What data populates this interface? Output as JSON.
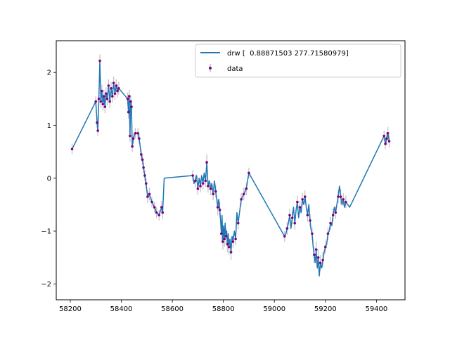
{
  "chart_data": {
    "type": "line",
    "title": "",
    "xlabel": "",
    "ylabel": "",
    "xlim": [
      58145,
      59512
    ],
    "ylim": [
      -2.3,
      2.6
    ],
    "xticks": [
      58200,
      58400,
      58600,
      58800,
      59000,
      59200,
      59400
    ],
    "yticks": [
      -2,
      -1,
      0,
      1,
      2
    ],
    "xtick_labels": [
      "58200",
      "58400",
      "58600",
      "58800",
      "59000",
      "59200",
      "59400"
    ],
    "ytick_labels": [
      "−2",
      "−1",
      "0",
      "1",
      "2"
    ],
    "grid": false,
    "legend": {
      "placement": "top-right",
      "entries": [
        {
          "label": "drw [  0.88871503 277.71580979]",
          "marker": "line",
          "color": "#1f77b4"
        },
        {
          "label": "data",
          "marker": "point-errorbar",
          "color": "#800080"
        }
      ]
    },
    "series": [
      {
        "name": "drw [  0.88871503 277.71580979]",
        "kind": "line",
        "color": "#1f77b4",
        "x": [
          58207,
          58300,
          58305,
          58308,
          58312,
          58316,
          58320,
          58324,
          58328,
          58332,
          58336,
          58340,
          58345,
          58350,
          58355,
          58360,
          58365,
          58370,
          58375,
          58380,
          58385,
          58390,
          58425,
          58428,
          58431,
          58434,
          58437,
          58440,
          58443,
          58447,
          58455,
          58465,
          58470,
          58478,
          58483,
          58487,
          58492,
          58497,
          58503,
          58510,
          58520,
          58530,
          58538,
          58548,
          58558,
          58562,
          58568,
          58680,
          58685,
          58690,
          58695,
          58700,
          58705,
          58710,
          58715,
          58720,
          58725,
          58730,
          58735,
          58740,
          58745,
          58750,
          58755,
          58760,
          58765,
          58770,
          58778,
          58782,
          58786,
          58789,
          58792,
          58795,
          58798,
          58801,
          58804,
          58807,
          58810,
          58813,
          58816,
          58819,
          58822,
          58826,
          58830,
          58834,
          58838,
          58843,
          58848,
          58853,
          58858,
          58870,
          58880,
          58890,
          58900,
          59040,
          59045,
          59050,
          59055,
          59060,
          59065,
          59070,
          59075,
          59080,
          59085,
          59090,
          59095,
          59100,
          59105,
          59110,
          59115,
          59120,
          59125,
          59130,
          59135,
          59140,
          59143,
          59148,
          59152,
          59156,
          59160,
          59164,
          59168,
          59172,
          59176,
          59180,
          59185,
          59190,
          59195,
          59200,
          59205,
          59210,
          59215,
          59220,
          59225,
          59230,
          59235,
          59240,
          59245,
          59250,
          59255,
          59260,
          59265,
          59270,
          59275,
          59280,
          59295,
          59430,
          59435,
          59440,
          59445,
          59450
        ],
        "y": [
          0.55,
          1.45,
          1.05,
          0.9,
          1.5,
          2.22,
          1.45,
          1.65,
          1.4,
          1.55,
          1.35,
          1.6,
          1.5,
          1.75,
          1.45,
          1.7,
          1.55,
          1.8,
          1.6,
          1.75,
          1.65,
          1.7,
          1.5,
          1.25,
          1.55,
          0.8,
          1.45,
          1.35,
          0.6,
          0.75,
          0.85,
          0.85,
          0.75,
          0.45,
          0.35,
          0.2,
          0.05,
          -0.1,
          -0.35,
          -0.3,
          -0.45,
          -0.55,
          -0.65,
          -0.7,
          -0.55,
          -0.65,
          0.0,
          0.05,
          -0.1,
          -0.05,
          0.05,
          -0.2,
          0.0,
          -0.15,
          0.05,
          -0.1,
          0.1,
          -0.05,
          0.3,
          -0.15,
          -0.05,
          -0.2,
          -0.1,
          -0.3,
          -0.05,
          -0.25,
          -0.55,
          -0.4,
          -0.6,
          -0.8,
          -1.05,
          -0.7,
          -1.2,
          -0.9,
          -1.15,
          -0.85,
          -1.1,
          -1.0,
          -1.25,
          -1.05,
          -1.3,
          -1.15,
          -1.4,
          -1.1,
          -1.2,
          -1.0,
          -1.15,
          -0.65,
          -0.85,
          -0.4,
          -0.3,
          -0.2,
          0.1,
          -1.1,
          -1.05,
          -0.95,
          -0.85,
          -0.7,
          -0.95,
          -0.75,
          -0.55,
          -0.85,
          -0.6,
          -0.45,
          -0.75,
          -0.55,
          -0.65,
          -0.4,
          -0.5,
          -0.35,
          -0.55,
          -0.7,
          -0.5,
          -0.8,
          -0.95,
          -1.05,
          -1.3,
          -1.45,
          -1.6,
          -1.35,
          -1.7,
          -1.5,
          -1.85,
          -1.6,
          -1.7,
          -1.55,
          -1.4,
          -1.3,
          -1.25,
          -1.05,
          -1.0,
          -0.85,
          -0.9,
          -0.7,
          -0.55,
          -0.65,
          -0.5,
          -0.35,
          -0.15,
          -0.35,
          -0.5,
          -0.4,
          -0.55,
          -0.45,
          -0.55,
          0.8,
          0.65,
          0.75,
          0.85,
          0.7
        ]
      },
      {
        "name": "data",
        "kind": "scatter-errorbar",
        "color": "#800080",
        "errorbar_color": "#c0c0c0",
        "x": [
          58207,
          58300,
          58305,
          58308,
          58312,
          58316,
          58320,
          58324,
          58328,
          58332,
          58336,
          58340,
          58345,
          58350,
          58355,
          58360,
          58365,
          58370,
          58375,
          58380,
          58385,
          58390,
          58425,
          58428,
          58431,
          58434,
          58437,
          58440,
          58443,
          58447,
          58455,
          58465,
          58470,
          58478,
          58483,
          58487,
          58492,
          58497,
          58503,
          58510,
          58520,
          58530,
          58538,
          58548,
          58558,
          58562,
          58680,
          58690,
          58700,
          58710,
          58720,
          58730,
          58735,
          58740,
          58750,
          58760,
          58770,
          58778,
          58786,
          58792,
          58798,
          58804,
          58810,
          58816,
          58822,
          58830,
          58838,
          58848,
          58858,
          58870,
          58880,
          58890,
          58900,
          59040,
          59050,
          59060,
          59070,
          59080,
          59090,
          59100,
          59110,
          59120,
          59130,
          59140,
          59148,
          59156,
          59164,
          59172,
          59180,
          59190,
          59200,
          59210,
          59220,
          59230,
          59240,
          59250,
          59260,
          59270,
          59280,
          59430,
          59435,
          59440,
          59445,
          59450
        ],
        "y": [
          0.55,
          1.45,
          1.05,
          0.9,
          1.5,
          2.22,
          1.45,
          1.65,
          1.4,
          1.55,
          1.35,
          1.6,
          1.5,
          1.75,
          1.45,
          1.7,
          1.55,
          1.8,
          1.6,
          1.75,
          1.65,
          1.7,
          1.5,
          1.25,
          1.55,
          0.8,
          1.45,
          1.35,
          0.6,
          0.75,
          0.85,
          0.85,
          0.75,
          0.45,
          0.35,
          0.2,
          0.05,
          -0.1,
          -0.35,
          -0.3,
          -0.45,
          -0.55,
          -0.65,
          -0.7,
          -0.55,
          -0.65,
          0.05,
          -0.05,
          -0.2,
          -0.15,
          -0.1,
          -0.05,
          0.3,
          -0.15,
          -0.2,
          -0.3,
          -0.25,
          -0.55,
          -0.6,
          -1.05,
          -1.2,
          -1.15,
          -1.1,
          -1.25,
          -1.3,
          -1.4,
          -1.2,
          -1.15,
          -0.85,
          -0.4,
          -0.3,
          -0.2,
          0.1,
          -1.1,
          -0.95,
          -0.7,
          -0.75,
          -0.85,
          -0.45,
          -0.55,
          -0.4,
          -0.35,
          -0.7,
          -0.8,
          -1.05,
          -1.45,
          -1.35,
          -1.5,
          -1.6,
          -1.55,
          -1.3,
          -1.05,
          -0.85,
          -0.7,
          -0.65,
          -0.35,
          -0.35,
          -0.4,
          -0.45,
          0.8,
          0.65,
          0.75,
          0.85,
          0.7
        ],
        "yerr": [
          0.1,
          0.1,
          0.1,
          0.1,
          0.12,
          0.12,
          0.12,
          0.12,
          0.12,
          0.12,
          0.12,
          0.12,
          0.12,
          0.12,
          0.12,
          0.12,
          0.12,
          0.12,
          0.12,
          0.12,
          0.12,
          0.12,
          0.12,
          0.12,
          0.12,
          0.12,
          0.12,
          0.12,
          0.1,
          0.1,
          0.1,
          0.1,
          0.1,
          0.1,
          0.1,
          0.1,
          0.1,
          0.1,
          0.12,
          0.12,
          0.1,
          0.1,
          0.1,
          0.1,
          0.12,
          0.12,
          0.1,
          0.12,
          0.12,
          0.12,
          0.12,
          0.12,
          0.15,
          0.12,
          0.12,
          0.12,
          0.12,
          0.15,
          0.15,
          0.15,
          0.15,
          0.15,
          0.15,
          0.15,
          0.15,
          0.15,
          0.12,
          0.12,
          0.12,
          0.12,
          0.12,
          0.12,
          0.1,
          0.1,
          0.12,
          0.12,
          0.12,
          0.12,
          0.12,
          0.12,
          0.12,
          0.12,
          0.12,
          0.12,
          0.12,
          0.15,
          0.15,
          0.15,
          0.15,
          0.15,
          0.12,
          0.12,
          0.12,
          0.12,
          0.12,
          0.12,
          0.15,
          0.12,
          0.12,
          0.1,
          0.1,
          0.12,
          0.12,
          0.12
        ]
      }
    ]
  }
}
